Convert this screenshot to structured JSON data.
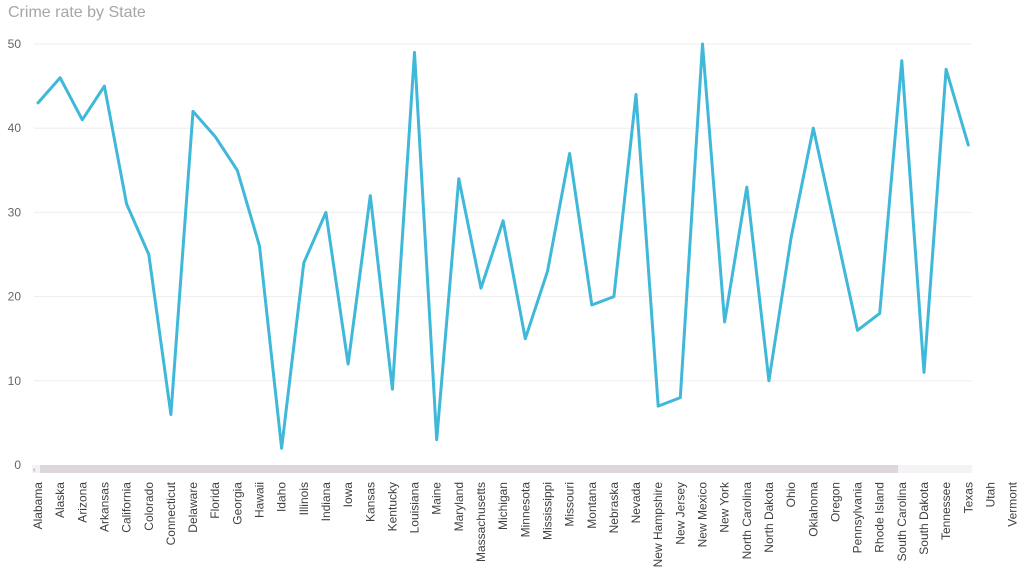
{
  "chart_data": {
    "type": "line",
    "title": "Crime rate by State",
    "xlabel": "",
    "ylabel": "",
    "ylim": [
      0,
      50
    ],
    "yticks": [
      0,
      10,
      20,
      30,
      40,
      50
    ],
    "grid": true,
    "legend": "none",
    "categories": [
      "Alabama",
      "Alaska",
      "Arizona",
      "Arkansas",
      "California",
      "Colorado",
      "Connecticut",
      "Delaware",
      "Florida",
      "Georgia",
      "Hawaii",
      "Idaho",
      "Illinois",
      "Indiana",
      "Iowa",
      "Kansas",
      "Kentucky",
      "Louisiana",
      "Maine",
      "Maryland",
      "Massachusetts",
      "Michigan",
      "Minnesota",
      "Mississippi",
      "Missouri",
      "Montana",
      "Nebraska",
      "Nevada",
      "New Hampshire",
      "New Jersey",
      "New Mexico",
      "New York",
      "North Carolina",
      "North Dakota",
      "Ohio",
      "Oklahoma",
      "Oregon",
      "Pennsylvania",
      "Rhode Island",
      "South Carolina",
      "South Dakota",
      "Tennessee",
      "Texas",
      "Utah",
      "Vermont"
    ],
    "series": [
      {
        "color": "#3fb8d9",
        "values": [
          43,
          46,
          41,
          45,
          31,
          25,
          6,
          42,
          39,
          35,
          26,
          2,
          24,
          30,
          12,
          32,
          9,
          49,
          3,
          34,
          21,
          29,
          15,
          23,
          37,
          19,
          20,
          44,
          7,
          8,
          50,
          17,
          33,
          10,
          27,
          40,
          28,
          16,
          18,
          48,
          11,
          47,
          38,
          null,
          null
        ]
      }
    ]
  },
  "colors": {
    "line": "#3fb8d9",
    "grid": "#eeeeee",
    "scrollbar": "#ddd6dc"
  }
}
